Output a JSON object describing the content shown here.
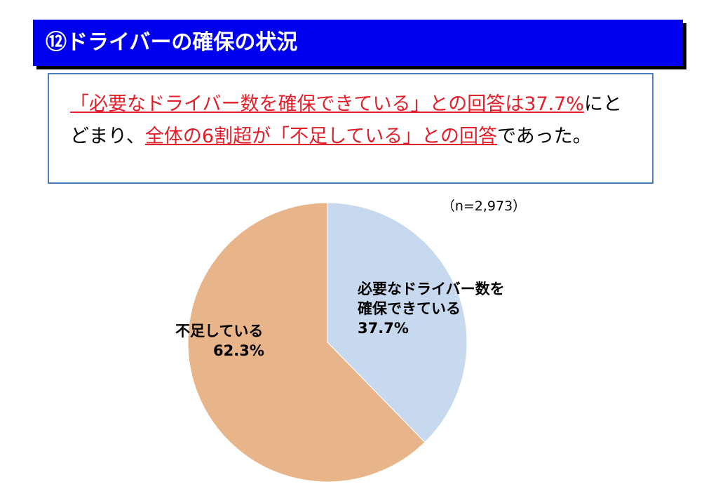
{
  "chart_data": {
    "type": "pie",
    "title": "⑫ドライバーの確保の状況",
    "summary": [
      {
        "text": "「必要なドライバー数を確保できている」との回答は37.7%",
        "style": "highlight"
      },
      {
        "text": "にとどまり、",
        "style": "plain"
      },
      {
        "text": "全体の6割超が「不足している」との回答",
        "style": "highlight"
      },
      {
        "text": "であった。",
        "style": "plain"
      }
    ],
    "subtitle": "（n=2,973）",
    "categories": [
      "必要なドライバー数を確保できている",
      "不足している"
    ],
    "values": [
      37.7,
      62.3
    ],
    "value_labels": [
      "37.7%",
      "62.3%"
    ],
    "colors": [
      "#c6d9ef",
      "#e8b48a"
    ]
  }
}
